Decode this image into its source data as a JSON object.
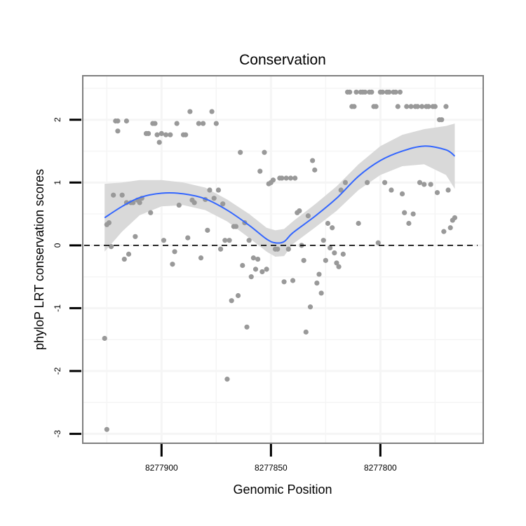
{
  "chart_data": {
    "type": "scatter",
    "title": "Conservation",
    "xlabel": "Genomic Position",
    "ylabel": "phyloP LRT conservation scores",
    "x_reversed": true,
    "xlim": [
      8277936,
      8277753
    ],
    "ylim": [
      -3.15,
      2.7
    ],
    "x_ticks": [
      8277900,
      8277850,
      8277800
    ],
    "x_tick_labels": [
      "8277900",
      "8277850",
      "8277800"
    ],
    "y_ticks": [
      -3,
      -2,
      -1,
      0,
      1,
      2
    ],
    "y_tick_labels": [
      "-3",
      "-2",
      "-1",
      "0",
      "1",
      "2"
    ],
    "reference_line": {
      "y": 0,
      "style": "dashed"
    },
    "colors": {
      "points": "#999999",
      "smooth": "#3366ff",
      "ribbon": "#d9d9d9",
      "grid": "#f5f5f5",
      "border": "#7f7f7f",
      "hline": "#000000"
    },
    "points": [
      [
        8277926,
        -1.48
      ],
      [
        8277925,
        -2.93
      ],
      [
        8277925,
        0.33
      ],
      [
        8277924,
        0.36
      ],
      [
        8277923,
        -0.02
      ],
      [
        8277922,
        0.8
      ],
      [
        8277921,
        1.98
      ],
      [
        8277920,
        1.98
      ],
      [
        8277920,
        1.82
      ],
      [
        8277918,
        0.8
      ],
      [
        8277917,
        -0.22
      ],
      [
        8277916,
        1.98
      ],
      [
        8277916,
        0.68
      ],
      [
        8277915,
        -0.14
      ],
      [
        8277914,
        0.68
      ],
      [
        8277913,
        0.68
      ],
      [
        8277912,
        0.14
      ],
      [
        8277911,
        0.72
      ],
      [
        8277910,
        0.68
      ],
      [
        8277909,
        0.75
      ],
      [
        8277907,
        1.78
      ],
      [
        8277906,
        1.78
      ],
      [
        8277905,
        0.52
      ],
      [
        8277904,
        1.94
      ],
      [
        8277903,
        1.94
      ],
      [
        8277902,
        1.76
      ],
      [
        8277901,
        1.64
      ],
      [
        8277900,
        1.78
      ],
      [
        8277899,
        0.08
      ],
      [
        8277898,
        1.76
      ],
      [
        8277896,
        1.76
      ],
      [
        8277895,
        -0.3
      ],
      [
        8277894,
        -0.1
      ],
      [
        8277893,
        1.94
      ],
      [
        8277892,
        0.64
      ],
      [
        8277890,
        1.76
      ],
      [
        8277889,
        1.76
      ],
      [
        8277888,
        0.12
      ],
      [
        8277887,
        2.13
      ],
      [
        8277886,
        0.72
      ],
      [
        8277885,
        0.68
      ],
      [
        8277883,
        1.94
      ],
      [
        8277882,
        -0.2
      ],
      [
        8277881,
        1.94
      ],
      [
        8277880,
        0.73
      ],
      [
        8277879,
        0.24
      ],
      [
        8277878,
        0.88
      ],
      [
        8277877,
        2.13
      ],
      [
        8277876,
        0.75
      ],
      [
        8277875,
        1.94
      ],
      [
        8277874,
        0.88
      ],
      [
        8277873,
        -0.06
      ],
      [
        8277872,
        0.66
      ],
      [
        8277871,
        0.08
      ],
      [
        8277870,
        -2.13
      ],
      [
        8277869,
        0.08
      ],
      [
        8277868,
        -0.88
      ],
      [
        8277867,
        0.3
      ],
      [
        8277866,
        0.3
      ],
      [
        8277865,
        -0.8
      ],
      [
        8277864,
        1.48
      ],
      [
        8277863,
        -0.32
      ],
      [
        8277862,
        0.36
      ],
      [
        8277861,
        -1.3
      ],
      [
        8277860,
        0.08
      ],
      [
        8277859,
        -0.5
      ],
      [
        8277858,
        -0.2
      ],
      [
        8277857,
        -0.38
      ],
      [
        8277856,
        -0.22
      ],
      [
        8277855,
        1.18
      ],
      [
        8277854,
        -0.42
      ],
      [
        8277853,
        1.48
      ],
      [
        8277852,
        -0.38
      ],
      [
        8277851,
        0.98
      ],
      [
        8277850,
        1.0
      ],
      [
        8277849,
        1.04
      ],
      [
        8277848,
        -0.06
      ],
      [
        8277847,
        -0.06
      ],
      [
        8277846,
        1.07
      ],
      [
        8277845,
        1.07
      ],
      [
        8277844,
        -0.58
      ],
      [
        8277843,
        1.07
      ],
      [
        8277842,
        -0.06
      ],
      [
        8277841,
        1.07
      ],
      [
        8277840,
        -0.56
      ],
      [
        8277839,
        1.07
      ],
      [
        8277838,
        0.52
      ],
      [
        8277837,
        0.55
      ],
      [
        8277836,
        0.0
      ],
      [
        8277835,
        -0.24
      ],
      [
        8277834,
        -1.38
      ],
      [
        8277833,
        0.47
      ],
      [
        8277832,
        -0.98
      ],
      [
        8277831,
        1.35
      ],
      [
        8277830,
        1.2
      ],
      [
        8277829,
        -0.6
      ],
      [
        8277828,
        -0.46
      ],
      [
        8277827,
        -0.76
      ],
      [
        8277826,
        0.08
      ],
      [
        8277825,
        -0.24
      ],
      [
        8277824,
        0.35
      ],
      [
        8277823,
        -0.04
      ],
      [
        8277822,
        0.28
      ],
      [
        8277821,
        -0.12
      ],
      [
        8277820,
        -0.28
      ],
      [
        8277819,
        -0.34
      ],
      [
        8277818,
        0.88
      ],
      [
        8277817,
        -0.14
      ],
      [
        8277816,
        1.0
      ],
      [
        8277815,
        2.44
      ],
      [
        8277814,
        2.44
      ],
      [
        8277813,
        2.21
      ],
      [
        8277812,
        2.21
      ],
      [
        8277811,
        2.44
      ],
      [
        8277810,
        0.35
      ],
      [
        8277809,
        2.44
      ],
      [
        8277808,
        2.44
      ],
      [
        8277807,
        2.44
      ],
      [
        8277806,
        1.0
      ],
      [
        8277805,
        2.44
      ],
      [
        8277804,
        2.44
      ],
      [
        8277803,
        2.21
      ],
      [
        8277802,
        2.21
      ],
      [
        8277801,
        0.04
      ],
      [
        8277800,
        2.44
      ],
      [
        8277799,
        2.44
      ],
      [
        8277798,
        1.0
      ],
      [
        8277797,
        2.44
      ],
      [
        8277796,
        2.44
      ],
      [
        8277795,
        0.88
      ],
      [
        8277794,
        2.44
      ],
      [
        8277793,
        2.44
      ],
      [
        8277792,
        2.21
      ],
      [
        8277791,
        2.44
      ],
      [
        8277790,
        0.82
      ],
      [
        8277789,
        0.52
      ],
      [
        8277788,
        2.21
      ],
      [
        8277787,
        0.35
      ],
      [
        8277786,
        2.21
      ],
      [
        8277785,
        0.5
      ],
      [
        8277784,
        2.21
      ],
      [
        8277783,
        2.21
      ],
      [
        8277782,
        1.0
      ],
      [
        8277781,
        2.21
      ],
      [
        8277780,
        0.97
      ],
      [
        8277779,
        2.21
      ],
      [
        8277778,
        2.21
      ],
      [
        8277777,
        0.97
      ],
      [
        8277776,
        2.21
      ],
      [
        8277775,
        2.21
      ],
      [
        8277774,
        0.84
      ],
      [
        8277773,
        2.0
      ],
      [
        8277772,
        2.0
      ],
      [
        8277771,
        0.22
      ],
      [
        8277770,
        2.21
      ],
      [
        8277769,
        0.88
      ],
      [
        8277768,
        0.28
      ],
      [
        8277767,
        0.4
      ],
      [
        8277766,
        0.44
      ]
    ],
    "smooth": {
      "x": [
        8277926,
        8277918,
        8277910,
        8277900,
        8277890,
        8277880,
        8277870,
        8277860,
        8277852,
        8277848,
        8277844,
        8277840,
        8277830,
        8277820,
        8277810,
        8277800,
        8277790,
        8277780,
        8277770,
        8277766
      ],
      "y": [
        0.44,
        0.62,
        0.76,
        0.83,
        0.82,
        0.74,
        0.56,
        0.32,
        0.1,
        0.04,
        0.06,
        0.2,
        0.46,
        0.75,
        1.1,
        1.35,
        1.5,
        1.58,
        1.52,
        1.42
      ],
      "upper": [
        0.98,
        1.0,
        1.04,
        1.04,
        1.0,
        0.92,
        0.73,
        0.5,
        0.28,
        0.24,
        0.26,
        0.38,
        0.65,
        0.94,
        1.29,
        1.58,
        1.76,
        1.85,
        1.9,
        1.94
      ],
      "lower": [
        -0.1,
        0.22,
        0.48,
        0.62,
        0.64,
        0.56,
        0.38,
        0.12,
        -0.1,
        -0.18,
        -0.17,
        0.02,
        0.28,
        0.55,
        0.88,
        1.12,
        1.26,
        1.29,
        1.12,
        0.9
      ]
    }
  }
}
